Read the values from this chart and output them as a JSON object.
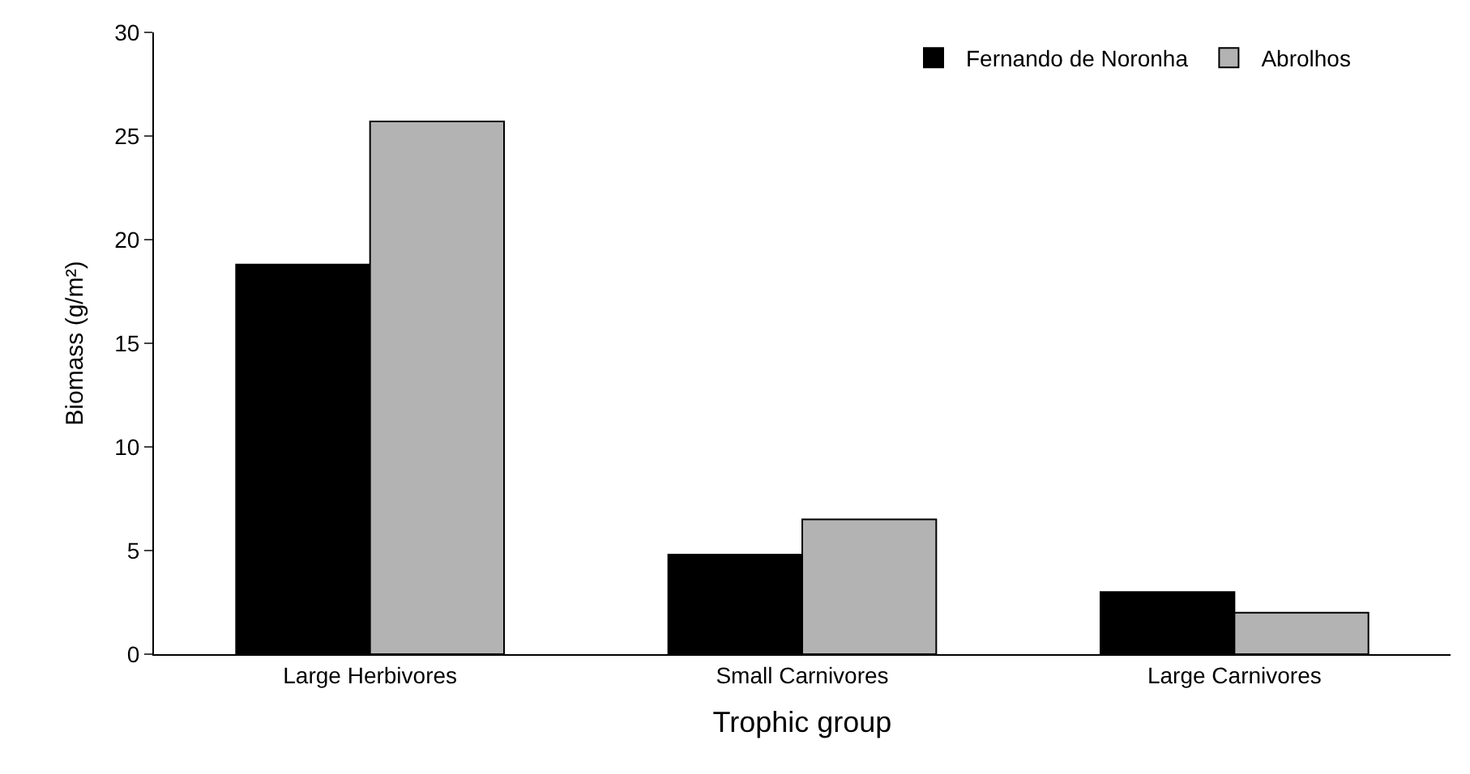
{
  "chart_data": {
    "type": "bar",
    "xlabel": "Trophic group",
    "ylabel": "Biomass (g/m²)",
    "categories": [
      "Large Herbivores",
      "Small Carnivores",
      "Large Carnivores"
    ],
    "series": [
      {
        "name": "Fernando de Noronha",
        "color": "#000000",
        "values": [
          18.8,
          4.8,
          3.0
        ]
      },
      {
        "name": "Abrolhos",
        "color": "#b3b3b3",
        "values": [
          25.7,
          6.5,
          2.0
        ]
      }
    ],
    "ylim": [
      0,
      30
    ],
    "yticks": [
      0,
      5,
      10,
      15,
      20,
      25,
      30
    ],
    "legend": "top right"
  }
}
